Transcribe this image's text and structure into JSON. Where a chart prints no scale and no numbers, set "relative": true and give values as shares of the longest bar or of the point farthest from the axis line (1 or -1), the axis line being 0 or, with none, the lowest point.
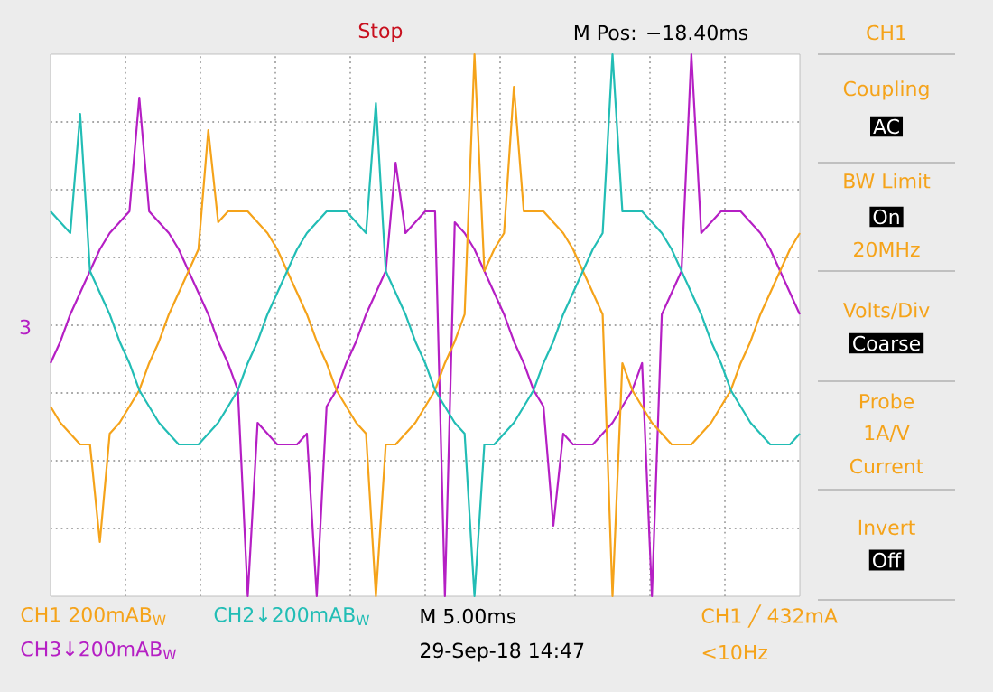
{
  "chart_data": {
    "type": "line",
    "relative": true,
    "grid": true,
    "categories": [
      null,
      null,
      null,
      null,
      null,
      null,
      null,
      null,
      null,
      null,
      null,
      null,
      null,
      null,
      null,
      null,
      null,
      null,
      null,
      null,
      null,
      null,
      null,
      null,
      null,
      null,
      null,
      null,
      null,
      null,
      null,
      null,
      null,
      null,
      null,
      null,
      null,
      null,
      null,
      null,
      null,
      null,
      null,
      null,
      null,
      null,
      null,
      null,
      null,
      null,
      null,
      null,
      null,
      null,
      null,
      null,
      null,
      null,
      null,
      null,
      null,
      null,
      null,
      null,
      null,
      null,
      null,
      null,
      null,
      null,
      null,
      null,
      null,
      null,
      null,
      null,
      null
    ],
    "series": [
      {
        "color": "#b51fc4",
        "values": [
          0.43,
          0.47,
          0.52,
          0.56,
          0.6,
          0.64,
          0.67,
          0.69,
          0.71,
          0.92,
          0.71,
          0.69,
          0.67,
          0.64,
          0.6,
          0.56,
          0.52,
          0.47,
          0.43,
          0.38,
          0.0,
          0.32,
          0.3,
          0.28,
          0.28,
          0.28,
          0.3,
          0.0,
          0.35,
          0.38,
          0.43,
          0.47,
          0.52,
          0.56,
          0.6,
          0.8,
          0.67,
          0.69,
          0.71,
          0.71,
          0.0,
          0.69,
          0.67,
          0.64,
          0.6,
          0.56,
          0.52,
          0.47,
          0.43,
          0.38,
          0.35,
          0.13,
          0.3,
          0.28,
          0.28,
          0.28,
          0.3,
          0.32,
          0.35,
          0.38,
          0.43,
          0.0,
          0.52,
          0.56,
          0.6,
          1.0,
          0.67,
          0.69,
          0.71,
          0.71,
          0.71,
          0.69,
          0.67,
          0.64,
          0.6,
          0.56,
          0.52
        ]
      },
      {
        "color": "#f5a31a",
        "values": [
          0.35,
          0.32,
          0.3,
          0.28,
          0.28,
          0.1,
          0.3,
          0.32,
          0.35,
          0.38,
          0.43,
          0.47,
          0.52,
          0.56,
          0.6,
          0.64,
          0.86,
          0.69,
          0.71,
          0.71,
          0.71,
          0.69,
          0.67,
          0.64,
          0.6,
          0.56,
          0.52,
          0.47,
          0.43,
          0.38,
          0.35,
          0.32,
          0.3,
          0.0,
          0.28,
          0.28,
          0.3,
          0.32,
          0.35,
          0.38,
          0.43,
          0.47,
          0.52,
          1.0,
          0.6,
          0.64,
          0.67,
          0.94,
          0.71,
          0.71,
          0.71,
          0.69,
          0.67,
          0.64,
          0.6,
          0.56,
          0.52,
          0.0,
          0.43,
          0.38,
          0.35,
          0.32,
          0.3,
          0.28,
          0.28,
          0.28,
          0.3,
          0.32,
          0.35,
          0.38,
          0.43,
          0.47,
          0.52,
          0.56,
          0.6,
          0.64,
          0.67
        ]
      },
      {
        "color": "#22bdb5",
        "values": [
          0.71,
          0.69,
          0.67,
          0.89,
          0.6,
          0.56,
          0.52,
          0.47,
          0.43,
          0.38,
          0.35,
          0.32,
          0.3,
          0.28,
          0.28,
          0.28,
          0.3,
          0.32,
          0.35,
          0.38,
          0.43,
          0.47,
          0.52,
          0.56,
          0.6,
          0.64,
          0.67,
          0.69,
          0.71,
          0.71,
          0.71,
          0.69,
          0.67,
          0.91,
          0.6,
          0.56,
          0.52,
          0.47,
          0.43,
          0.38,
          0.35,
          0.32,
          0.3,
          0.0,
          0.28,
          0.28,
          0.3,
          0.32,
          0.35,
          0.38,
          0.43,
          0.47,
          0.52,
          0.56,
          0.6,
          0.64,
          0.67,
          1.0,
          0.71,
          0.71,
          0.71,
          0.69,
          0.67,
          0.64,
          0.6,
          0.56,
          0.52,
          0.47,
          0.43,
          0.38,
          0.35,
          0.32,
          0.3,
          0.28,
          0.28,
          0.28,
          0.3
        ]
      }
    ],
    "annotations": [
      "Stop",
      "M Pos: −18.40ms",
      "CH1",
      "Coupling",
      "AC",
      "BW Limit",
      "On",
      "20MHz",
      "Volts/Div",
      "Coarse",
      "Probe",
      "1A/V",
      "Current",
      "Invert",
      "Off",
      "CH1  200mAB$_{W}$",
      "CH2↓200mAB$_{W}$",
      "M 5.00ms",
      "CH1 ╱ 432mA",
      "CH3↓200mAB$_{W}$",
      "29-Sep-18 14:47",
      "<10Hz",
      "3"
    ]
  }
}
